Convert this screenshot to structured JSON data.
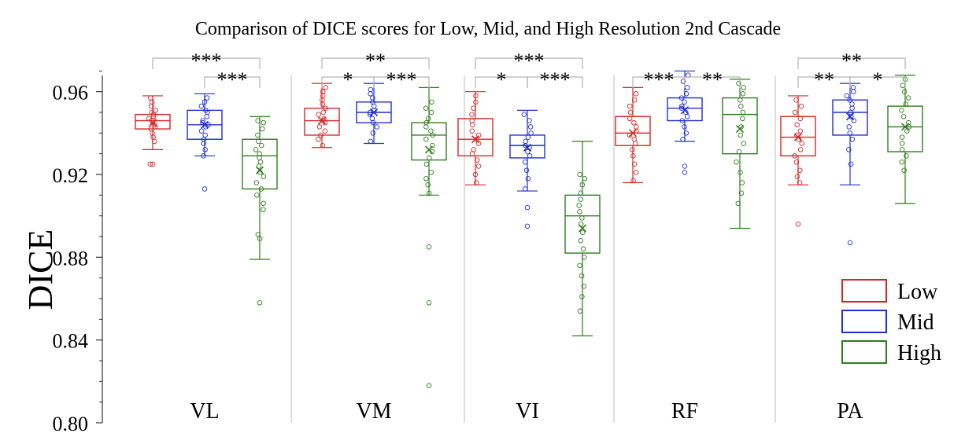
{
  "chart_data": {
    "type": "box",
    "title": "Comparison of DICE scores for Low, Mid, and High Resolution 2nd Cascade",
    "ylabel": "DICE",
    "xlabel": "",
    "ylim": [
      0.8,
      0.98
    ],
    "yticks": [
      "0.80",
      "0.84",
      "0.88",
      "0.92",
      "0.96"
    ],
    "ytick_values": [
      0.8,
      0.84,
      0.88,
      0.92,
      0.96
    ],
    "grid": false,
    "legend_position": "bottom-right",
    "series": [
      {
        "name": "Low",
        "color": "#d62728"
      },
      {
        "name": "Mid",
        "color": "#1f2fd0"
      },
      {
        "name": "High",
        "color": "#2e7d1e"
      }
    ],
    "categories": [
      "VL",
      "VM",
      "VI",
      "RF",
      "PA"
    ],
    "groups": [
      {
        "category": "VL",
        "boxes": [
          {
            "series": "Low",
            "whisker_low": 0.932,
            "q1": 0.942,
            "median": 0.946,
            "q3": 0.949,
            "whisker_high": 0.958,
            "mean": 0.945,
            "points": [
              0.925,
              0.936,
              0.938,
              0.94,
              0.942,
              0.943,
              0.944,
              0.945,
              0.946,
              0.946,
              0.947,
              0.948,
              0.949,
              0.95,
              0.951,
              0.953,
              0.955,
              0.957
            ],
            "outliers": [
              0.925
            ]
          },
          {
            "series": "Mid",
            "whisker_low": 0.929,
            "q1": 0.937,
            "median": 0.944,
            "q3": 0.951,
            "whisker_high": 0.959,
            "mean": 0.944,
            "points": [
              0.929,
              0.932,
              0.935,
              0.937,
              0.939,
              0.941,
              0.943,
              0.944,
              0.945,
              0.946,
              0.948,
              0.95,
              0.951,
              0.953,
              0.955,
              0.957
            ],
            "outliers": [
              0.913
            ]
          },
          {
            "series": "High",
            "whisker_low": 0.879,
            "q1": 0.913,
            "median": 0.929,
            "q3": 0.937,
            "whisker_high": 0.948,
            "mean": 0.922,
            "points": [
              0.889,
              0.891,
              0.903,
              0.906,
              0.91,
              0.913,
              0.916,
              0.919,
              0.921,
              0.924,
              0.926,
              0.928,
              0.93,
              0.932,
              0.934,
              0.936,
              0.939,
              0.942,
              0.945,
              0.946
            ],
            "outliers": [
              0.858
            ]
          }
        ],
        "significance": [
          {
            "pair": [
              "Low",
              "High"
            ],
            "label": "***"
          },
          {
            "pair": [
              "Mid",
              "High"
            ],
            "label": "***"
          }
        ]
      },
      {
        "category": "VM",
        "boxes": [
          {
            "series": "Low",
            "whisker_low": 0.933,
            "q1": 0.939,
            "median": 0.946,
            "q3": 0.952,
            "whisker_high": 0.964,
            "mean": 0.946,
            "points": [
              0.934,
              0.937,
              0.939,
              0.941,
              0.943,
              0.945,
              0.946,
              0.947,
              0.949,
              0.95,
              0.952,
              0.954,
              0.956,
              0.958,
              0.96,
              0.962
            ],
            "outliers": []
          },
          {
            "series": "Mid",
            "whisker_low": 0.935,
            "q1": 0.945,
            "median": 0.95,
            "q3": 0.955,
            "whisker_high": 0.964,
            "mean": 0.95,
            "points": [
              0.936,
              0.94,
              0.943,
              0.945,
              0.947,
              0.949,
              0.95,
              0.951,
              0.953,
              0.955,
              0.957,
              0.959,
              0.961
            ],
            "outliers": []
          },
          {
            "series": "High",
            "whisker_low": 0.91,
            "q1": 0.927,
            "median": 0.939,
            "q3": 0.945,
            "whisker_high": 0.962,
            "mean": 0.932,
            "points": [
              0.911,
              0.915,
              0.918,
              0.921,
              0.925,
              0.928,
              0.931,
              0.934,
              0.937,
              0.939,
              0.941,
              0.943,
              0.945,
              0.947,
              0.95,
              0.952,
              0.955
            ],
            "outliers": [
              0.885,
              0.858,
              0.818
            ]
          }
        ],
        "significance": [
          {
            "pair": [
              "Low",
              "Mid"
            ],
            "label": "*"
          },
          {
            "pair": [
              "Low",
              "High"
            ],
            "label": "**"
          },
          {
            "pair": [
              "Mid",
              "High"
            ],
            "label": "***"
          }
        ]
      },
      {
        "category": "VI",
        "boxes": [
          {
            "series": "Low",
            "whisker_low": 0.915,
            "q1": 0.929,
            "median": 0.937,
            "q3": 0.947,
            "whisker_high": 0.96,
            "mean": 0.937,
            "points": [
              0.916,
              0.92,
              0.924,
              0.927,
              0.93,
              0.932,
              0.935,
              0.937,
              0.939,
              0.941,
              0.944,
              0.946,
              0.949,
              0.952,
              0.955,
              0.958
            ],
            "outliers": []
          },
          {
            "series": "Mid",
            "whisker_low": 0.912,
            "q1": 0.928,
            "median": 0.934,
            "q3": 0.939,
            "whisker_high": 0.951,
            "mean": 0.933,
            "points": [
              0.913,
              0.918,
              0.922,
              0.926,
              0.929,
              0.931,
              0.933,
              0.934,
              0.936,
              0.938,
              0.94,
              0.943,
              0.946,
              0.949
            ],
            "outliers": [
              0.904,
              0.895
            ]
          },
          {
            "series": "High",
            "whisker_low": 0.842,
            "q1": 0.882,
            "median": 0.9,
            "q3": 0.91,
            "whisker_high": 0.936,
            "mean": 0.894,
            "points": [
              0.854,
              0.861,
              0.866,
              0.871,
              0.876,
              0.88,
              0.884,
              0.888,
              0.892,
              0.896,
              0.899,
              0.902,
              0.905,
              0.908,
              0.911,
              0.915,
              0.918,
              0.92
            ],
            "outliers": []
          }
        ],
        "significance": [
          {
            "pair": [
              "Low",
              "Mid"
            ],
            "label": "*"
          },
          {
            "pair": [
              "Low",
              "High"
            ],
            "label": "***"
          },
          {
            "pair": [
              "Mid",
              "High"
            ],
            "label": "***"
          }
        ]
      },
      {
        "category": "RF",
        "boxes": [
          {
            "series": "Low",
            "whisker_low": 0.916,
            "q1": 0.934,
            "median": 0.94,
            "q3": 0.948,
            "whisker_high": 0.962,
            "mean": 0.94,
            "points": [
              0.917,
              0.921,
              0.925,
              0.929,
              0.932,
              0.935,
              0.937,
              0.939,
              0.941,
              0.943,
              0.945,
              0.947,
              0.95,
              0.953,
              0.956,
              0.959
            ],
            "outliers": []
          },
          {
            "series": "Mid",
            "whisker_low": 0.936,
            "q1": 0.946,
            "median": 0.952,
            "q3": 0.957,
            "whisker_high": 0.97,
            "mean": 0.951,
            "points": [
              0.937,
              0.94,
              0.943,
              0.946,
              0.948,
              0.95,
              0.952,
              0.953,
              0.955,
              0.957,
              0.959,
              0.962,
              0.965,
              0.968
            ],
            "outliers": [
              0.924,
              0.921
            ]
          },
          {
            "series": "High",
            "whisker_low": 0.894,
            "q1": 0.93,
            "median": 0.949,
            "q3": 0.957,
            "whisker_high": 0.966,
            "mean": 0.942,
            "points": [
              0.906,
              0.911,
              0.916,
              0.921,
              0.926,
              0.931,
              0.935,
              0.939,
              0.943,
              0.947,
              0.95,
              0.953,
              0.956,
              0.959,
              0.962,
              0.964
            ],
            "outliers": []
          }
        ],
        "significance": [
          {
            "pair": [
              "Low",
              "Mid"
            ],
            "label": "***"
          },
          {
            "pair": [
              "Mid",
              "High"
            ],
            "label": "**"
          }
        ]
      },
      {
        "category": "PA",
        "boxes": [
          {
            "series": "Low",
            "whisker_low": 0.915,
            "q1": 0.929,
            "median": 0.938,
            "q3": 0.948,
            "whisker_high": 0.958,
            "mean": 0.938,
            "points": [
              0.916,
              0.919,
              0.922,
              0.926,
              0.929,
              0.932,
              0.935,
              0.937,
              0.939,
              0.941,
              0.944,
              0.947,
              0.95,
              0.953,
              0.956
            ],
            "outliers": [
              0.896
            ]
          },
          {
            "series": "Mid",
            "whisker_low": 0.915,
            "q1": 0.939,
            "median": 0.95,
            "q3": 0.956,
            "whisker_high": 0.964,
            "mean": 0.948,
            "points": [
              0.925,
              0.932,
              0.937,
              0.94,
              0.943,
              0.946,
              0.948,
              0.95,
              0.952,
              0.954,
              0.956,
              0.958,
              0.96,
              0.962
            ],
            "outliers": [
              0.887
            ]
          },
          {
            "series": "High",
            "whisker_low": 0.906,
            "q1": 0.931,
            "median": 0.943,
            "q3": 0.953,
            "whisker_high": 0.968,
            "mean": 0.943,
            "points": [
              0.922,
              0.926,
              0.929,
              0.932,
              0.935,
              0.938,
              0.941,
              0.943,
              0.945,
              0.948,
              0.951,
              0.954,
              0.957,
              0.96,
              0.963,
              0.966
            ],
            "outliers": []
          }
        ],
        "significance": [
          {
            "pair": [
              "Low",
              "Mid"
            ],
            "label": "**"
          },
          {
            "pair": [
              "Low",
              "High"
            ],
            "label": "**"
          },
          {
            "pair": [
              "Mid",
              "High"
            ],
            "label": "*"
          }
        ]
      }
    ]
  }
}
